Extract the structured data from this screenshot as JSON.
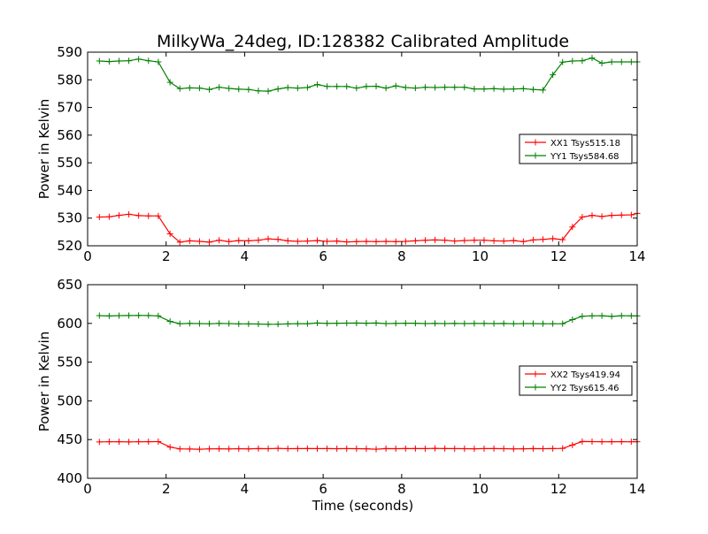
{
  "chart_data": {
    "title": "MilkyWa_24deg, ID:128382 Calibrated Amplitude",
    "xlabel": "Time (seconds)",
    "colors": {
      "red_series": "#ff0000",
      "green_series": "#008000"
    },
    "plots": [
      {
        "type": "line",
        "ylabel": "Power in Kelvin",
        "xlim": [
          0,
          14
        ],
        "ylim": [
          520,
          590
        ],
        "xticks": [
          "0",
          "2",
          "4",
          "6",
          "8",
          "10",
          "12",
          "14"
        ],
        "yticks": [
          "520",
          "530",
          "540",
          "550",
          "560",
          "570",
          "580",
          "590"
        ],
        "legend_position": "center-right",
        "grid": false,
        "series": [
          {
            "name": "XX1 Tsys515.18",
            "color": "#ff0000",
            "x": [
              0.3,
              0.55,
              0.8,
              1.05,
              1.3,
              1.55,
              1.8,
              2.1,
              2.35,
              2.6,
              2.85,
              3.1,
              3.35,
              3.6,
              3.85,
              4.1,
              4.35,
              4.6,
              4.85,
              5.1,
              5.35,
              5.6,
              5.85,
              6.1,
              6.35,
              6.6,
              6.85,
              7.1,
              7.35,
              7.6,
              7.85,
              8.1,
              8.35,
              8.6,
              8.85,
              9.1,
              9.35,
              9.6,
              9.85,
              10.1,
              10.35,
              10.6,
              10.85,
              11.1,
              11.35,
              11.6,
              11.85,
              12.1,
              12.35,
              12.6,
              12.85,
              13.1,
              13.35,
              13.6,
              13.85,
              14.0
            ],
            "y": [
              530.4,
              530.5,
              531.0,
              531.4,
              530.9,
              530.8,
              530.8,
              524.3,
              521.3,
              521.8,
              521.6,
              521.3,
              522.0,
              521.5,
              521.9,
              521.8,
              522.0,
              522.5,
              522.3,
              521.8,
              521.6,
              521.7,
              521.9,
              521.6,
              521.7,
              521.4,
              521.5,
              521.6,
              521.5,
              521.6,
              521.5,
              521.6,
              521.8,
              522.0,
              522.1,
              522.0,
              521.7,
              521.9,
              522.0,
              522.0,
              521.8,
              521.7,
              521.9,
              521.5,
              522.1,
              522.3,
              522.6,
              522.2,
              526.8,
              530.4,
              531.0,
              530.6,
              531.0,
              531.1,
              531.2,
              531.7
            ]
          },
          {
            "name": "YY1 Tsys584.68",
            "color": "#008000",
            "x": [
              0.3,
              0.55,
              0.8,
              1.05,
              1.3,
              1.55,
              1.8,
              2.1,
              2.35,
              2.6,
              2.85,
              3.1,
              3.35,
              3.6,
              3.85,
              4.1,
              4.35,
              4.6,
              4.85,
              5.1,
              5.35,
              5.6,
              5.85,
              6.1,
              6.35,
              6.6,
              6.85,
              7.1,
              7.35,
              7.6,
              7.85,
              8.1,
              8.35,
              8.6,
              8.85,
              9.1,
              9.35,
              9.6,
              9.85,
              10.1,
              10.35,
              10.6,
              10.85,
              11.1,
              11.35,
              11.6,
              11.85,
              12.1,
              12.35,
              12.6,
              12.85,
              13.1,
              13.35,
              13.6,
              13.85,
              14.0
            ],
            "y": [
              586.8,
              586.6,
              586.8,
              586.9,
              587.5,
              586.9,
              586.5,
              579.1,
              576.8,
              577.1,
              577.0,
              576.5,
              577.3,
              576.9,
              576.6,
              576.5,
              576.0,
              575.9,
              576.7,
              577.2,
              577.0,
              577.2,
              578.3,
              577.6,
              577.6,
              577.6,
              577.0,
              577.6,
              577.7,
              577.0,
              577.8,
              577.2,
              577.0,
              577.3,
              577.2,
              577.3,
              577.3,
              577.3,
              576.7,
              576.7,
              576.8,
              576.6,
              576.7,
              576.8,
              576.5,
              576.3,
              581.8,
              586.4,
              586.8,
              586.9,
              587.9,
              586.0,
              586.5,
              586.5,
              586.5,
              586.5
            ]
          }
        ]
      },
      {
        "type": "line",
        "ylabel": "Power in Kelvin",
        "xlim": [
          0,
          14
        ],
        "ylim": [
          400,
          650
        ],
        "xticks": [
          "0",
          "2",
          "4",
          "6",
          "8",
          "10",
          "12",
          "14"
        ],
        "yticks": [
          "400",
          "450",
          "500",
          "550",
          "600",
          "650"
        ],
        "legend_position": "center-right",
        "grid": false,
        "series": [
          {
            "name": "XX2 Tsys419.94",
            "color": "#ff0000",
            "x": [
              0.3,
              0.55,
              0.8,
              1.05,
              1.3,
              1.55,
              1.8,
              2.1,
              2.35,
              2.6,
              2.85,
              3.1,
              3.35,
              3.6,
              3.85,
              4.1,
              4.35,
              4.6,
              4.85,
              5.1,
              5.35,
              5.6,
              5.85,
              6.1,
              6.35,
              6.6,
              6.85,
              7.1,
              7.35,
              7.6,
              7.85,
              8.1,
              8.35,
              8.6,
              8.85,
              9.1,
              9.35,
              9.6,
              9.85,
              10.1,
              10.35,
              10.6,
              10.85,
              11.1,
              11.35,
              11.6,
              11.85,
              12.1,
              12.35,
              12.6,
              12.85,
              13.1,
              13.35,
              13.6,
              13.85,
              14.0
            ],
            "y": [
              447.0,
              447.2,
              447.3,
              447.0,
              447.2,
              447.3,
              447.4,
              440.3,
              438.0,
              437.8,
              437.5,
              438.0,
              438.1,
              437.9,
              438.2,
              438.0,
              438.4,
              438.2,
              438.6,
              438.2,
              438.3,
              438.4,
              438.3,
              438.3,
              438.2,
              438.3,
              438.2,
              438.1,
              437.6,
              438.4,
              438.2,
              438.4,
              438.4,
              438.3,
              438.6,
              438.4,
              438.3,
              438.2,
              438.1,
              438.3,
              438.4,
              438.2,
              438.0,
              438.1,
              438.4,
              438.2,
              438.4,
              438.6,
              443.0,
              447.5,
              447.4,
              447.2,
              447.3,
              447.3,
              447.2,
              447.3
            ]
          },
          {
            "name": "YY2 Tsys615.46",
            "color": "#008000",
            "x": [
              0.3,
              0.55,
              0.8,
              1.05,
              1.3,
              1.55,
              1.8,
              2.1,
              2.35,
              2.6,
              2.85,
              3.1,
              3.35,
              3.6,
              3.85,
              4.1,
              4.35,
              4.6,
              4.85,
              5.1,
              5.35,
              5.6,
              5.85,
              6.1,
              6.35,
              6.6,
              6.85,
              7.1,
              7.35,
              7.6,
              7.85,
              8.1,
              8.35,
              8.6,
              8.85,
              9.1,
              9.35,
              9.6,
              9.85,
              10.1,
              10.35,
              10.6,
              10.85,
              11.1,
              11.35,
              11.6,
              11.85,
              12.1,
              12.35,
              12.6,
              12.85,
              13.1,
              13.35,
              13.6,
              13.85,
              14.0
            ],
            "y": [
              610.0,
              609.6,
              610.1,
              610.2,
              610.3,
              610.2,
              609.7,
              602.6,
              599.7,
              600.0,
              599.8,
              599.6,
              600.0,
              599.8,
              599.4,
              599.4,
              599.2,
              598.9,
              599.0,
              599.4,
              599.7,
              599.7,
              600.5,
              600.0,
              600.2,
              600.3,
              600.4,
              600.2,
              600.5,
              599.8,
              600.0,
              600.2,
              600.2,
              599.8,
              600.0,
              599.8,
              600.0,
              599.8,
              599.9,
              599.9,
              599.8,
              599.9,
              599.6,
              599.8,
              599.8,
              599.6,
              599.6,
              599.7,
              604.9,
              609.2,
              609.8,
              609.9,
              609.0,
              609.9,
              609.8,
              609.7
            ]
          }
        ]
      }
    ]
  }
}
